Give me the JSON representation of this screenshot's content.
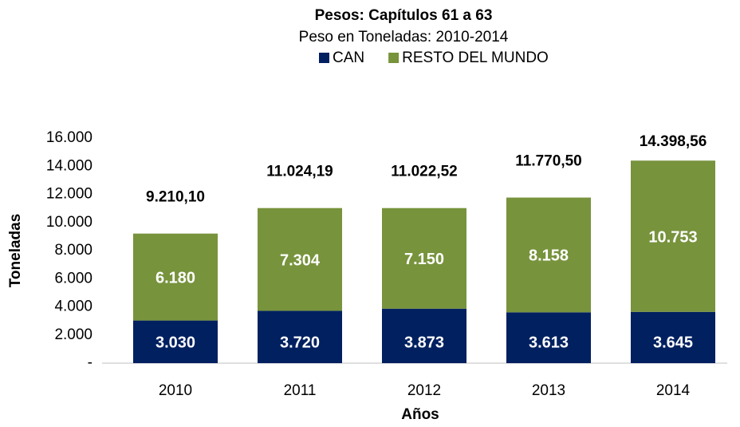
{
  "chart_data": {
    "type": "stacked_bar",
    "title": "Pesos: Capítulos 61 a 63",
    "subtitle": "Peso en Toneladas: 2010-2014",
    "x_label": "Años",
    "y_label": "Toneladas",
    "categories": [
      "2010",
      "2011",
      "2012",
      "2013",
      "2014"
    ],
    "series": [
      {
        "name": "CAN",
        "color": "#002060",
        "values": [
          3030,
          3720,
          3873,
          3613,
          3645
        ],
        "value_labels": [
          "3.030",
          "3.720",
          "3.873",
          "3.613",
          "3.645"
        ]
      },
      {
        "name": "RESTO DEL MUNDO",
        "color": "#77933c",
        "values": [
          6180,
          7304,
          7150,
          8158,
          10753
        ],
        "value_labels": [
          "6.180",
          "7.304",
          "7.150",
          "8.158",
          "10.753"
        ]
      }
    ],
    "totals": {
      "values": [
        9210.1,
        11024.19,
        11022.52,
        11770.5,
        14398.56
      ],
      "value_labels": [
        "9.210,10",
        "11.024,19",
        "11.022,52",
        "11.770,50",
        "14.398,56"
      ]
    },
    "ylim": [
      0,
      16000
    ],
    "yticks": [
      {
        "value": 0,
        "label": "-"
      },
      {
        "value": 2000,
        "label": "2.000"
      },
      {
        "value": 4000,
        "label": "4.000"
      },
      {
        "value": 6000,
        "label": "6.000"
      },
      {
        "value": 8000,
        "label": "8.000"
      },
      {
        "value": 10000,
        "label": "10.000"
      },
      {
        "value": 12000,
        "label": "12.000"
      },
      {
        "value": 14000,
        "label": "14.000"
      },
      {
        "value": 16000,
        "label": "16.000"
      }
    ],
    "legend": "top"
  }
}
